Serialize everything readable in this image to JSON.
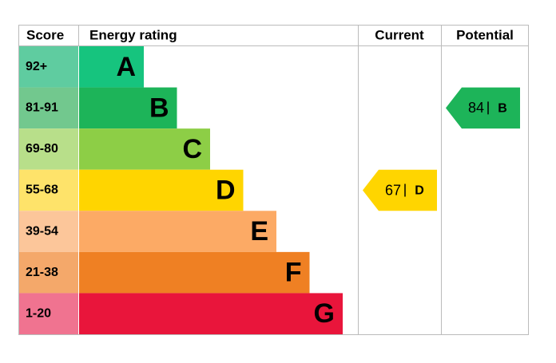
{
  "header": {
    "score": "Score",
    "rating": "Energy rating",
    "current": "Current",
    "potential": "Potential"
  },
  "bands": [
    {
      "score": "92+",
      "letter": "A",
      "color": "#16c47e",
      "light": "#5fcca0"
    },
    {
      "score": "81-91",
      "letter": "B",
      "color": "#1db459",
      "light": "#72c88e"
    },
    {
      "score": "69-80",
      "letter": "C",
      "color": "#8dce46",
      "light": "#b8df8a"
    },
    {
      "score": "55-68",
      "letter": "D",
      "color": "#ffd500",
      "light": "#fee36a"
    },
    {
      "score": "39-54",
      "letter": "E",
      "color": "#fcaa65",
      "light": "#fcc69a"
    },
    {
      "score": "21-38",
      "letter": "F",
      "color": "#ef8023",
      "light": "#f4a86a"
    },
    {
      "score": "1-20",
      "letter": "G",
      "color": "#e9153b",
      "light": "#f07390"
    }
  ],
  "current": {
    "value": 67,
    "letter": "D"
  },
  "potential": {
    "value": 84,
    "letter": "B"
  }
}
